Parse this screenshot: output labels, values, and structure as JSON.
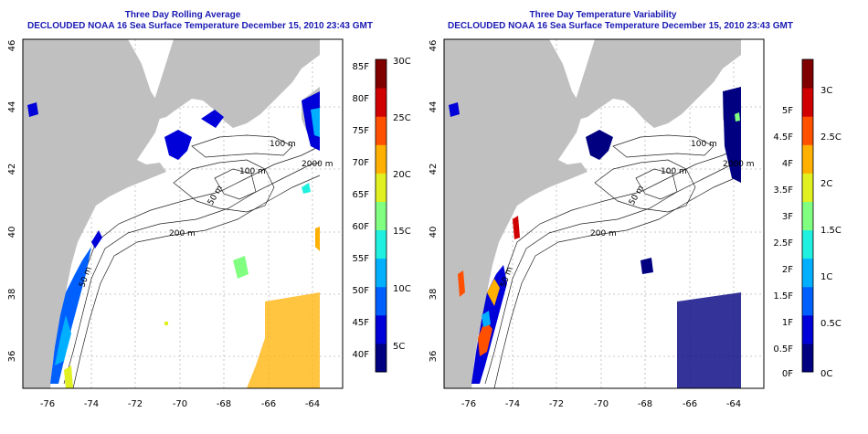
{
  "left_panel": {
    "title": "Three Day Rolling Average",
    "subtitle": "DECLOUDED NOAA 16 Sea Surface Temperature December 15, 2010 23:43 GMT",
    "colorbar": {
      "colors": [
        "#000080",
        "#0000d8",
        "#0060ff",
        "#00b0ff",
        "#20f0e0",
        "#80ff80",
        "#e0f020",
        "#ffb000",
        "#ff5000",
        "#d00000",
        "#800000"
      ],
      "c_labels": [
        "30C",
        "25C",
        "20C",
        "15C",
        "10C",
        "5C"
      ],
      "f_labels": [
        "85F",
        "80F",
        "75F",
        "70F",
        "65F",
        "60F",
        "55F",
        "50F",
        "45F",
        "40F"
      ]
    }
  },
  "right_panel": {
    "title": "Three Day Temperature Variability",
    "subtitle": "DECLOUDED NOAA 16 Sea Surface Temperature December 15, 2010 23:43 GMT",
    "colorbar": {
      "colors": [
        "#000080",
        "#0000d8",
        "#0060ff",
        "#00b0ff",
        "#20f0e0",
        "#80ff80",
        "#e0f020",
        "#ffb000",
        "#ff5000",
        "#d00000",
        "#800000"
      ],
      "c_labels": [
        "3C",
        "2.5C",
        "2C",
        "1.5C",
        "1C",
        "0.5C",
        "0C"
      ],
      "f_labels": [
        "5F",
        "4.5F",
        "4F",
        "3.5F",
        "3F",
        "2.5F",
        "2F",
        "1.5F",
        "1F",
        "0.5F",
        "0F"
      ]
    }
  },
  "map": {
    "x_ticks": [
      "-76",
      "-74",
      "-72",
      "-70",
      "-68",
      "-66",
      "-64"
    ],
    "y_ticks": [
      "46",
      "44",
      "42",
      "40",
      "38",
      "36"
    ],
    "contour_labels": [
      "100 m",
      "2000 m",
      "100 m",
      "50 m",
      "200 m",
      "50 m"
    ],
    "land_color": "#c0c0c0"
  }
}
